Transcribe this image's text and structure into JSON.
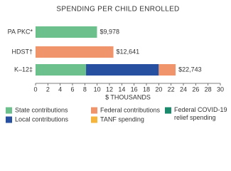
{
  "chart_data": {
    "type": "stacked-barh",
    "title": "SPENDING PER CHILD ENROLLED",
    "categories": [
      "PA PKC*",
      "HDST†",
      "K–12‡"
    ],
    "series": [
      {
        "name": "State contributions",
        "color": "#6cc08b",
        "values": [
          9.978,
          null,
          8.2
        ]
      },
      {
        "name": "Local contributions",
        "color": "#2750a0",
        "values": [
          null,
          null,
          11.8
        ]
      },
      {
        "name": "Federal contributions",
        "color": "#f0956b",
        "values": [
          null,
          12.641,
          2.74
        ]
      },
      {
        "name": "TANF spending",
        "color": "#f5b43c",
        "values": [
          null,
          null,
          null
        ]
      },
      {
        "name": "Federal COVID-19 relief spending",
        "color": "#1b8a6c",
        "values": [
          null,
          null,
          null
        ]
      }
    ],
    "totals": [
      9.978,
      12.641,
      22.743
    ],
    "total_labels": [
      "$9,978",
      "$12,641",
      "$22,743"
    ],
    "xlabel": "$ THOUSANDS",
    "xlim": [
      0,
      30
    ],
    "xticks": [
      0,
      2,
      4,
      6,
      8,
      10,
      12,
      14,
      16,
      18,
      20,
      22,
      24,
      26,
      28,
      30
    ]
  }
}
